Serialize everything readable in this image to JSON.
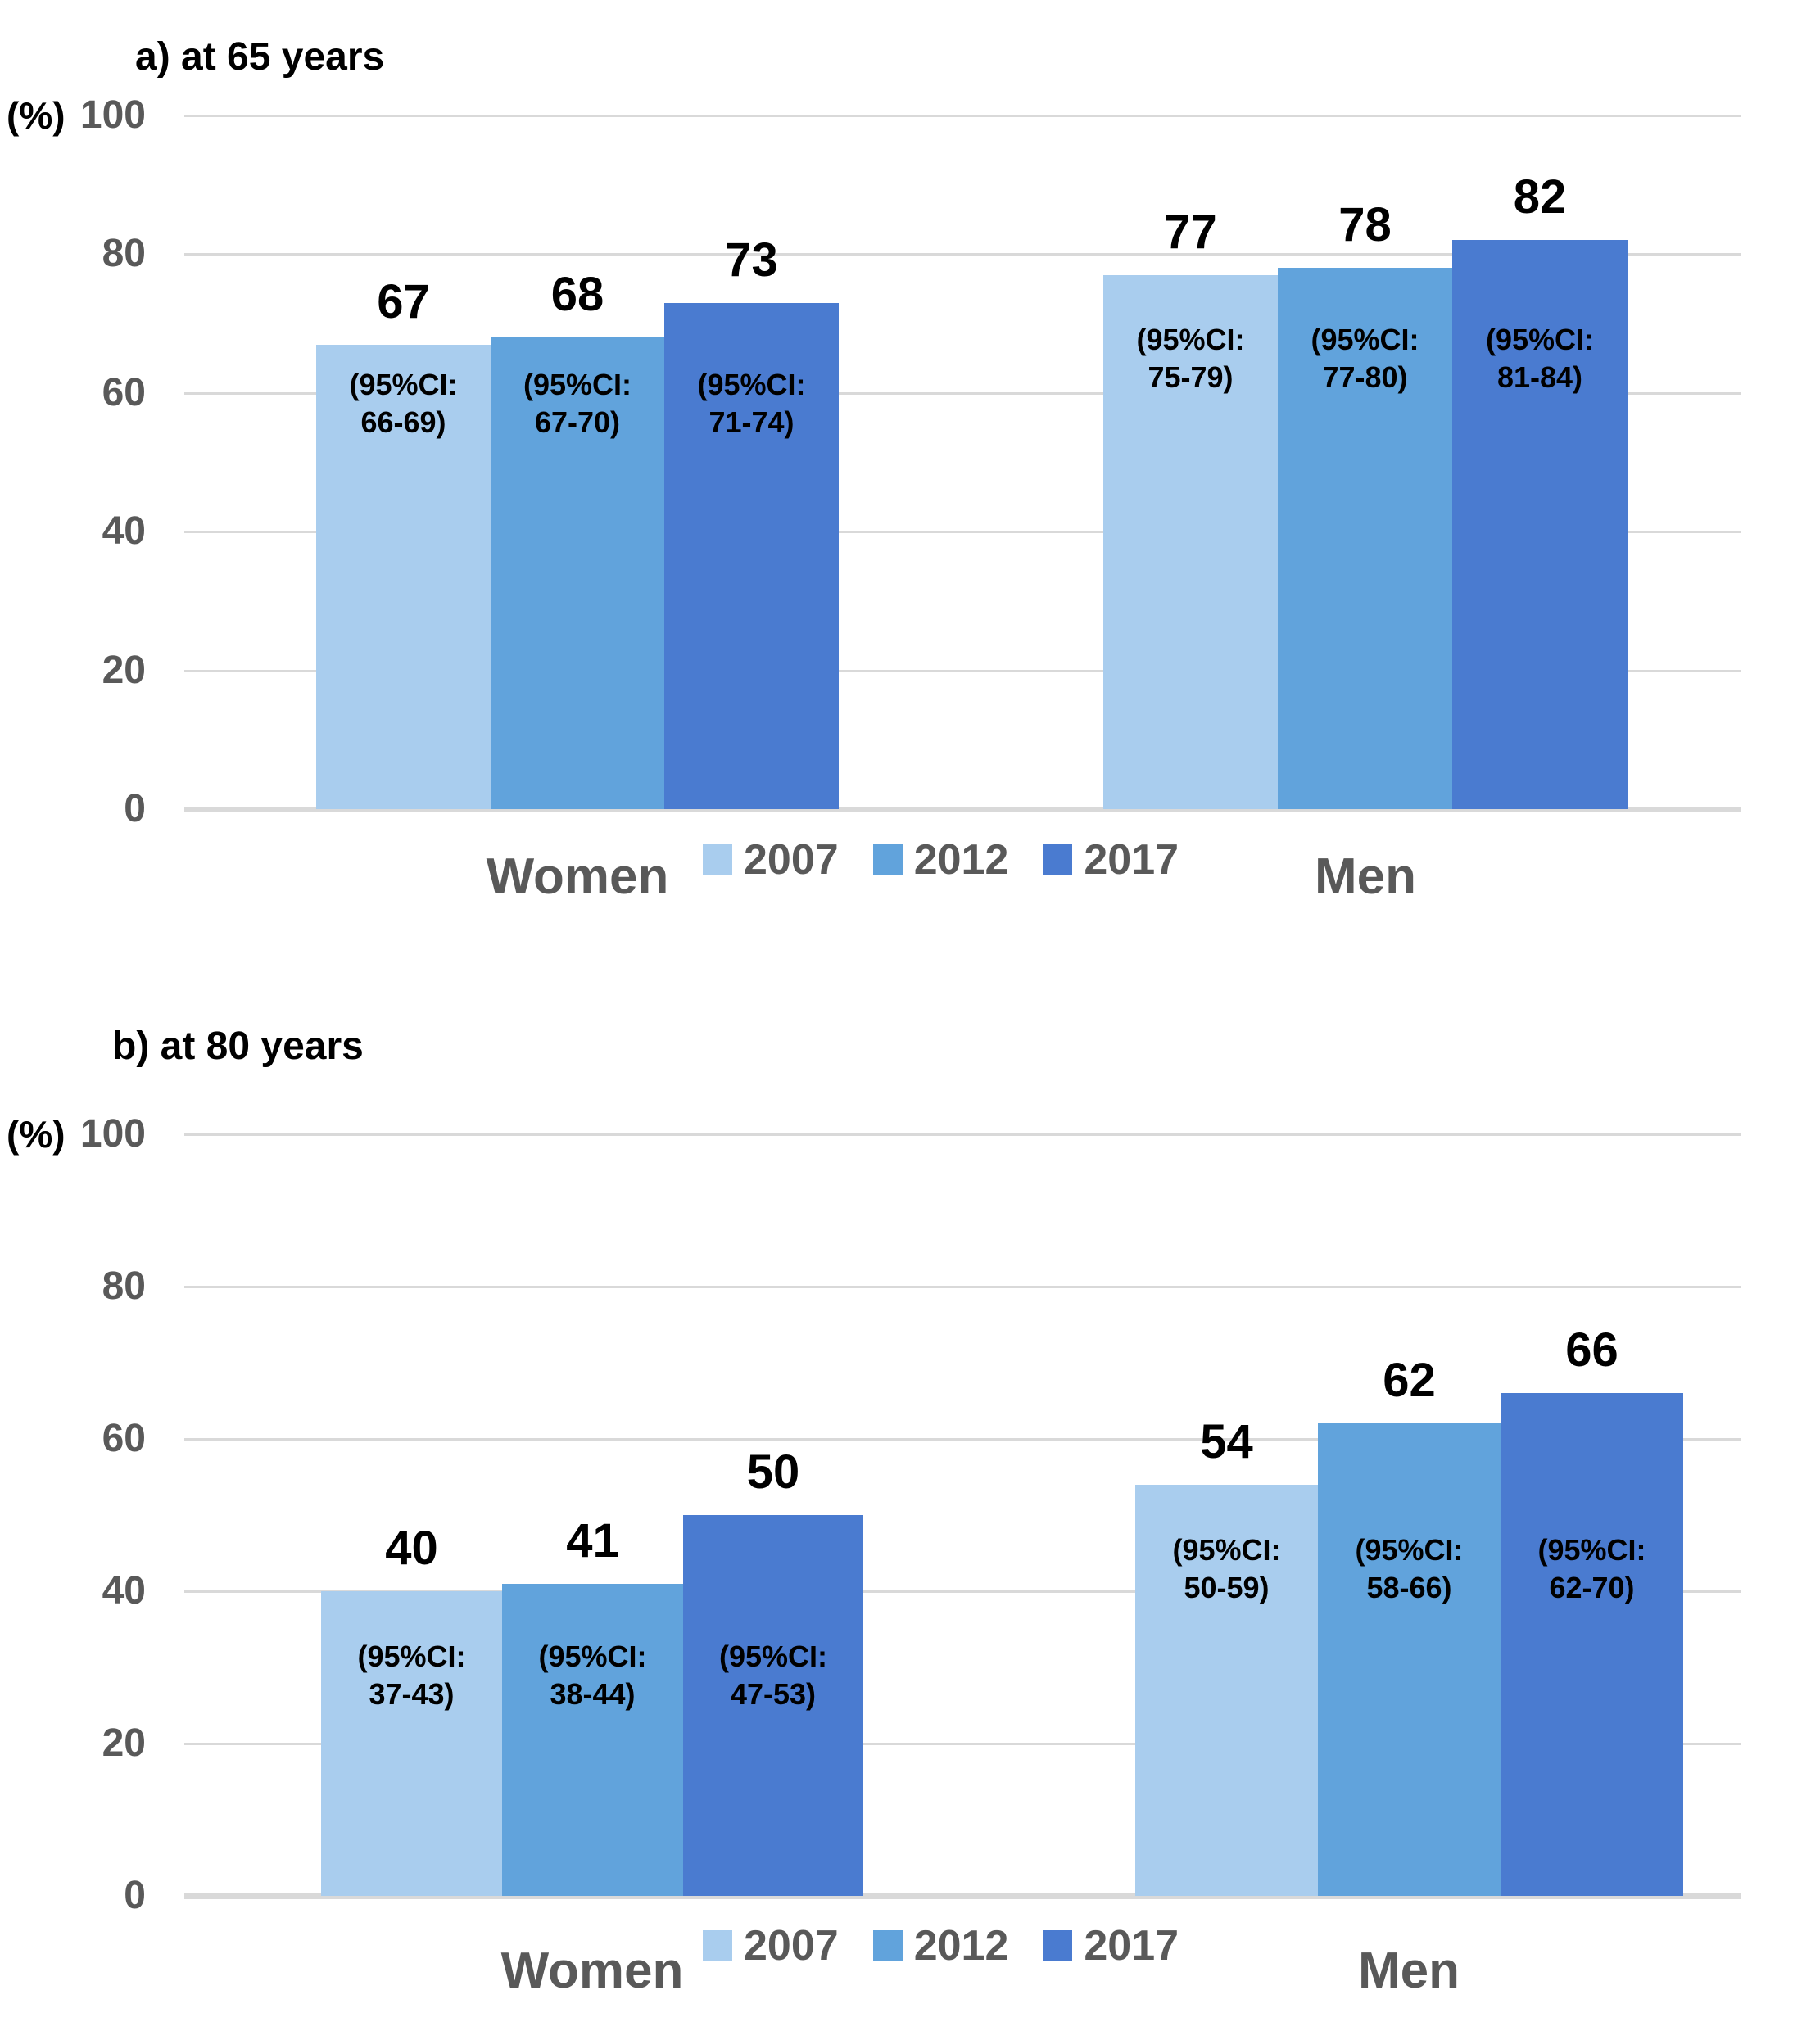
{
  "colors": {
    "series_2007": "#A9CDEE",
    "series_2012": "#61A3DC",
    "series_2017": "#4A7BD0",
    "axis_text": "#595959",
    "value_text": "#000000",
    "gridline": "#D9D9D9"
  },
  "chart_data": [
    {
      "type": "bar",
      "title": "a) at 65 years",
      "ylabel": "(%)",
      "xlabel": "",
      "ylim": [
        0,
        100
      ],
      "yticks": [
        100,
        80,
        60,
        40,
        20,
        0
      ],
      "grid": true,
      "legend_position": "bottom-center",
      "categories": [
        "Women",
        "Men"
      ],
      "series": [
        {
          "name": "2007",
          "color": "#A9CDEE",
          "values": [
            67,
            77
          ],
          "ci": [
            [
              "(95%CI:",
              "66-69)"
            ],
            [
              "(95%CI:",
              "75-79)"
            ]
          ]
        },
        {
          "name": "2012",
          "color": "#61A3DC",
          "values": [
            68,
            78
          ],
          "ci": [
            [
              "(95%CI:",
              "67-70)"
            ],
            [
              "(95%CI:",
              "77-80)"
            ]
          ]
        },
        {
          "name": "2017",
          "color": "#4A7BD0",
          "values": [
            73,
            82
          ],
          "ci": [
            [
              "(95%CI:",
              "71-74)"
            ],
            [
              "(95%CI:",
              "81-84)"
            ]
          ]
        }
      ]
    },
    {
      "type": "bar",
      "title": "b) at 80 years",
      "ylabel": "(%)",
      "xlabel": "",
      "ylim": [
        0,
        100
      ],
      "yticks": [
        100,
        80,
        60,
        40,
        20,
        0
      ],
      "grid": true,
      "legend_position": "bottom-center",
      "categories": [
        "Women",
        "Men"
      ],
      "series": [
        {
          "name": "2007",
          "color": "#A9CDEE",
          "values": [
            40,
            54
          ],
          "ci": [
            [
              "(95%CI:",
              "37-43)"
            ],
            [
              "(95%CI:",
              "50-59)"
            ]
          ]
        },
        {
          "name": "2012",
          "color": "#61A3DC",
          "values": [
            41,
            62
          ],
          "ci": [
            [
              "(95%CI:",
              "38-44)"
            ],
            [
              "(95%CI:",
              "58-66)"
            ]
          ]
        },
        {
          "name": "2017",
          "color": "#4A7BD0",
          "values": [
            50,
            66
          ],
          "ci": [
            [
              "(95%CI:",
              "47-53)"
            ],
            [
              "(95%CI:",
              "62-70)"
            ]
          ]
        }
      ]
    }
  ]
}
